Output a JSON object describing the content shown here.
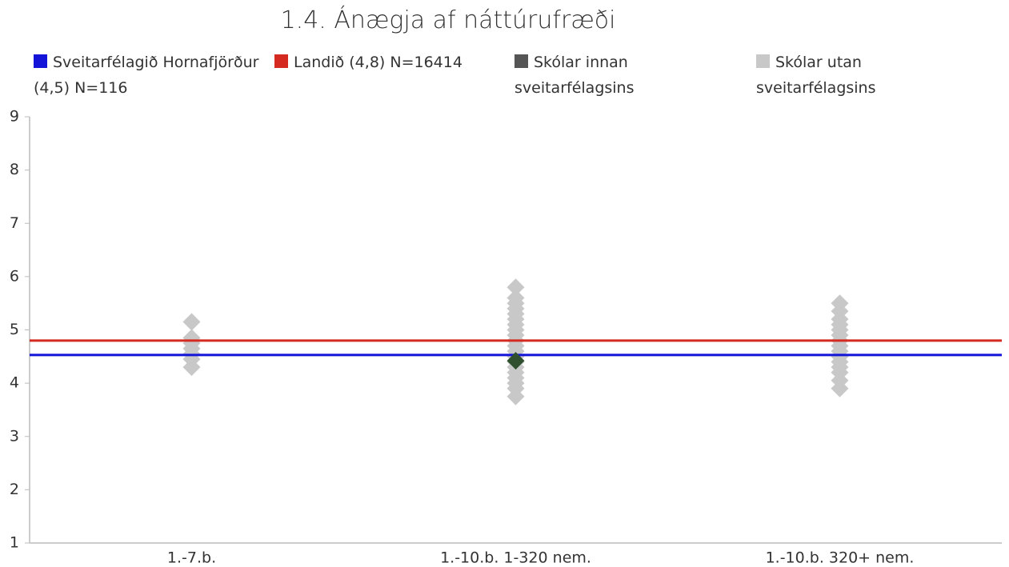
{
  "chart_data": {
    "type": "scatter",
    "title": "1.4. Ánægja af náttúrufræði",
    "categories": [
      "1.-7.b.",
      "1.-10.b. 1-320 nem.",
      "1.-10.b. 320+ nem."
    ],
    "ylim": [
      1,
      9
    ],
    "yticks": [
      1,
      2,
      3,
      4,
      5,
      6,
      7,
      8,
      9
    ],
    "series": [
      {
        "name": "Sveitarfélagið Hornafjörður (4,5) N=116",
        "type": "hline",
        "color": "#1414d8",
        "value": 4.53
      },
      {
        "name": "Landið (4,8) N=16414",
        "type": "hline",
        "color": "#d42a20",
        "value": 4.8
      },
      {
        "name": "Skólar innan sveitarfélagsins",
        "type": "diamond",
        "color": "#555555",
        "marker_color": "#2f4f2f",
        "values": [
          [],
          [
            4.42
          ],
          []
        ]
      },
      {
        "name": "Skólar utan sveitarfélagsins",
        "type": "diamond",
        "color": "#c8c8c8",
        "values": [
          [
            4.3,
            4.45,
            4.55,
            4.65,
            4.75,
            4.85,
            5.15
          ],
          [
            3.75,
            3.9,
            4.0,
            4.1,
            4.2,
            4.3,
            4.4,
            4.5,
            4.6,
            4.7,
            4.8,
            4.9,
            5.0,
            5.1,
            5.2,
            5.3,
            5.4,
            5.5,
            5.6,
            5.8
          ],
          [
            3.9,
            4.05,
            4.2,
            4.3,
            4.4,
            4.5,
            4.6,
            4.7,
            4.8,
            4.9,
            5.0,
            5.1,
            5.2,
            5.35,
            5.5
          ]
        ]
      }
    ]
  }
}
